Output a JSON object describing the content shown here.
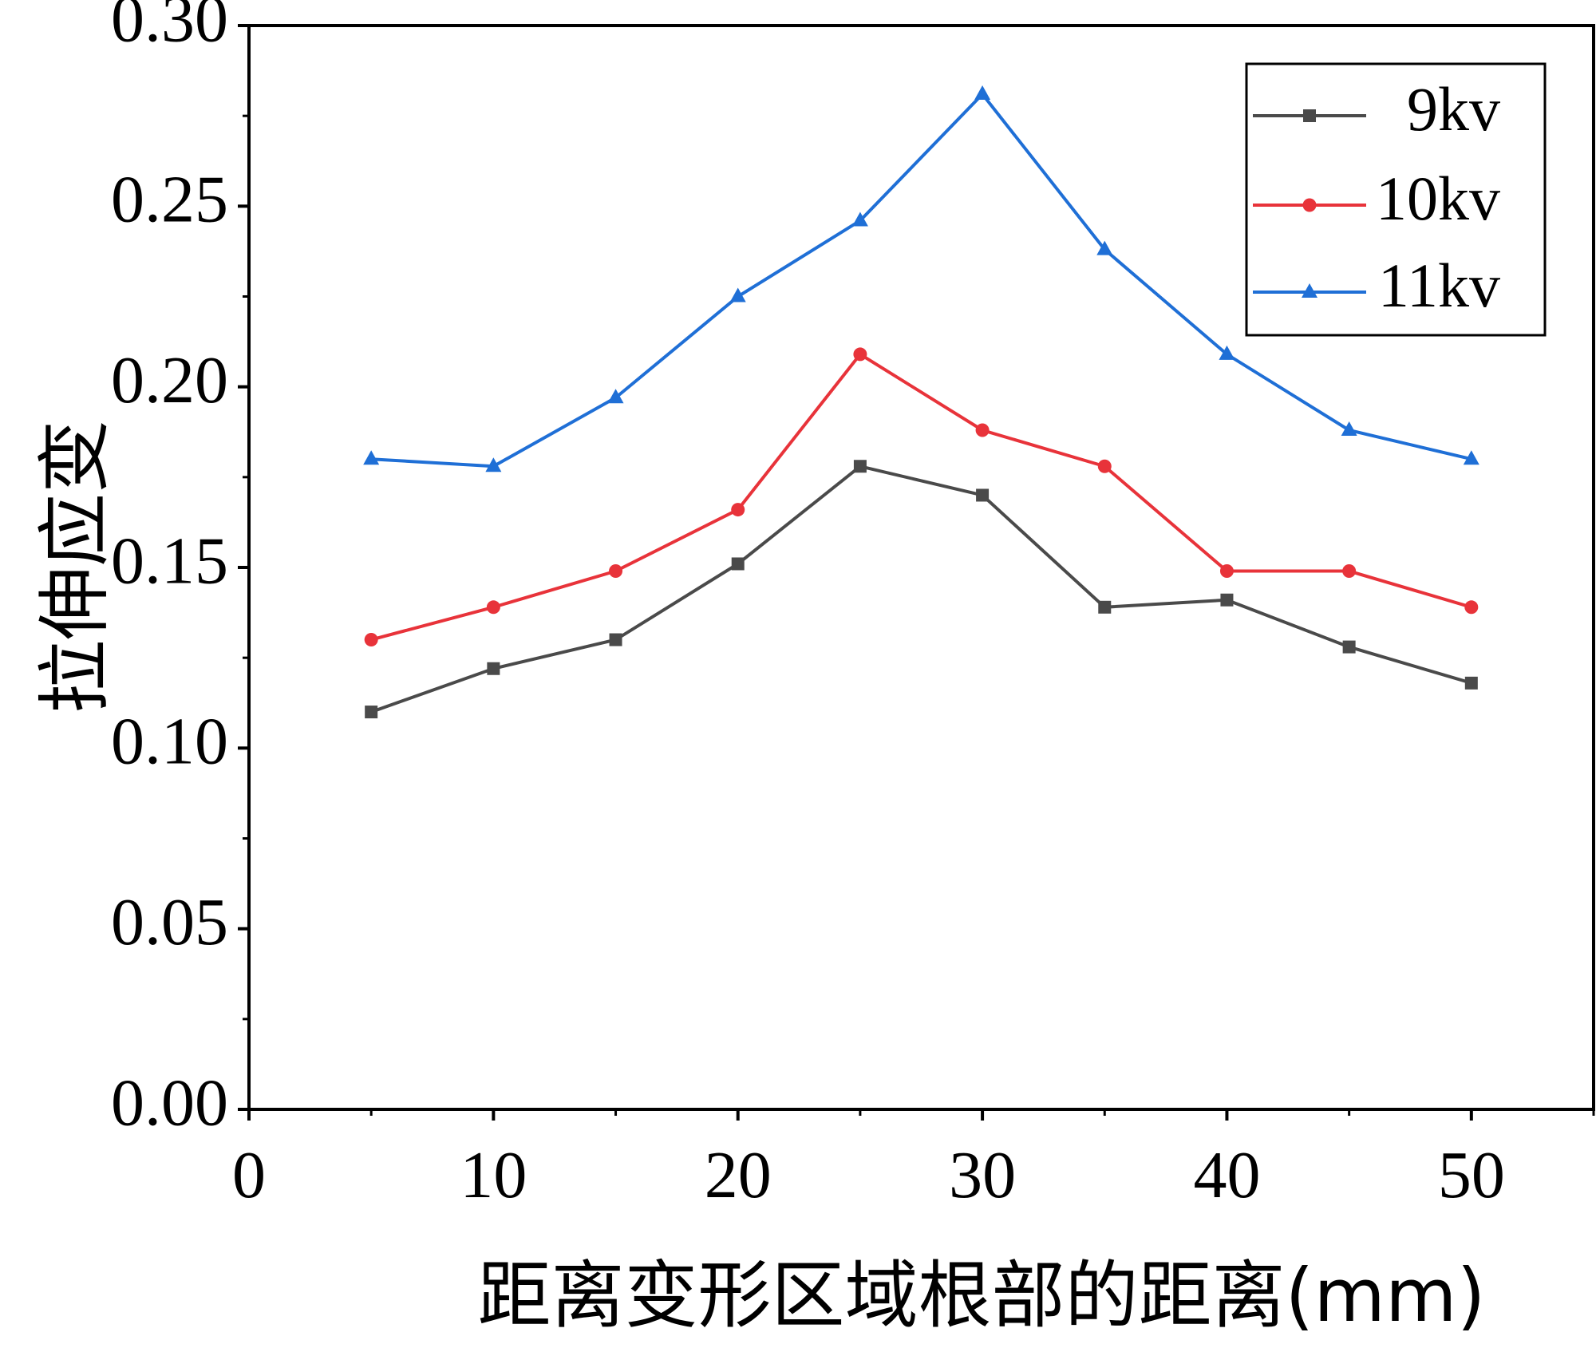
{
  "chart_data": {
    "type": "line",
    "xlabel": "距离变形区域根部的距离(mm)",
    "ylabel": "拉伸应变",
    "xlim": [
      0,
      55
    ],
    "ylim": [
      0,
      0.3
    ],
    "xticks": [
      0,
      10,
      20,
      30,
      40,
      50
    ],
    "xtick_labels": [
      "0",
      "10",
      "20",
      "30",
      "40",
      "50"
    ],
    "yticks": [
      0,
      0.05,
      0.1,
      0.15,
      0.2,
      0.25,
      0.3
    ],
    "ytick_labels": [
      "0.00",
      "0.05",
      "0.10",
      "0.15",
      "0.20",
      "0.25",
      "0.30"
    ],
    "grid": false,
    "legend_position": "top-right",
    "x": [
      5,
      10,
      15,
      20,
      25,
      30,
      35,
      40,
      45,
      50
    ],
    "series": [
      {
        "name": "9kv",
        "marker": "square",
        "color": "#4a4a4a",
        "values": [
          0.11,
          0.122,
          0.13,
          0.151,
          0.178,
          0.17,
          0.139,
          0.141,
          0.128,
          0.118
        ]
      },
      {
        "name": "10kv",
        "marker": "circle",
        "color": "#e8333a",
        "values": [
          0.13,
          0.139,
          0.149,
          0.166,
          0.209,
          0.188,
          0.178,
          0.149,
          0.149,
          0.139
        ]
      },
      {
        "name": "11kv",
        "marker": "triangle",
        "color": "#1f6fd6",
        "values": [
          0.18,
          0.178,
          0.197,
          0.225,
          0.246,
          0.281,
          0.238,
          0.209,
          0.188,
          0.18
        ]
      }
    ]
  }
}
